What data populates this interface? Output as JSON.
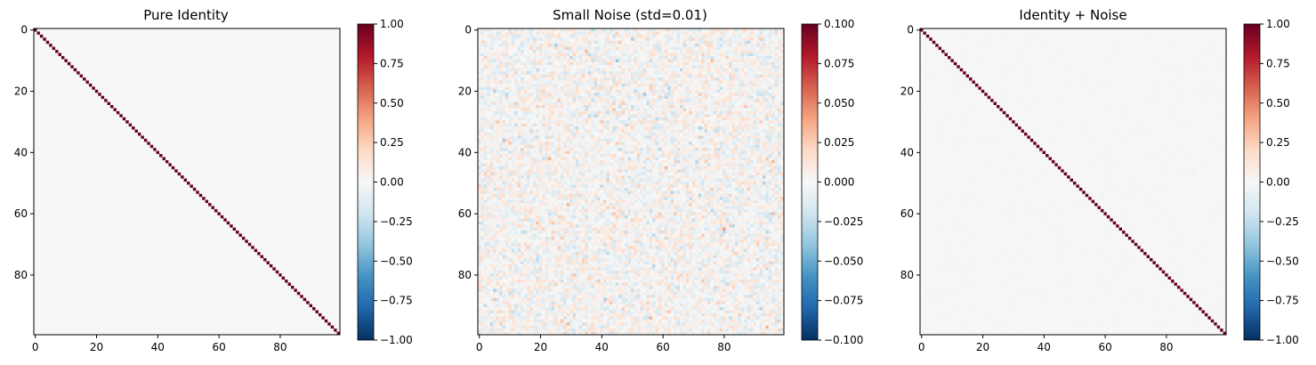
{
  "chart_data": [
    {
      "type": "heatmap",
      "title": "Pure Identity",
      "matrix": {
        "kind": "identity",
        "size": 100,
        "diagonal": 1.0,
        "off_diagonal": 0.0
      },
      "colormap": "RdBu_r",
      "clim": [
        -1.0,
        1.0
      ],
      "x_ticks": [
        0,
        20,
        40,
        60,
        80
      ],
      "y_ticks": [
        0,
        20,
        40,
        60,
        80
      ],
      "colorbar_ticks": [
        "1.00",
        "0.75",
        "0.50",
        "0.25",
        "0.00",
        "−0.25",
        "−0.50",
        "−0.75",
        "−1.00"
      ]
    },
    {
      "type": "heatmap",
      "title": "Small Noise (std=0.01)",
      "matrix": {
        "kind": "gaussian_noise",
        "size": 100,
        "mean": 0.0,
        "std": 0.01
      },
      "colormap": "RdBu_r",
      "clim": [
        -0.1,
        0.1
      ],
      "x_ticks": [
        0,
        20,
        40,
        60,
        80
      ],
      "y_ticks": [
        0,
        20,
        40,
        60,
        80
      ],
      "colorbar_ticks": [
        "0.100",
        "0.075",
        "0.050",
        "0.025",
        "0.000",
        "−0.025",
        "−0.050",
        "−0.075",
        "−0.100"
      ]
    },
    {
      "type": "heatmap",
      "title": "Identity + Noise",
      "matrix": {
        "kind": "identity_plus_noise",
        "size": 100,
        "diagonal": 1.0,
        "noise_std": 0.01
      },
      "colormap": "RdBu_r",
      "clim": [
        -1.0,
        1.0
      ],
      "x_ticks": [
        0,
        20,
        40,
        60,
        80
      ],
      "y_ticks": [
        0,
        20,
        40,
        60,
        80
      ],
      "colorbar_ticks": [
        "1.00",
        "0.75",
        "0.50",
        "0.25",
        "0.00",
        "−0.25",
        "−0.50",
        "−0.75",
        "−1.00"
      ]
    }
  ]
}
